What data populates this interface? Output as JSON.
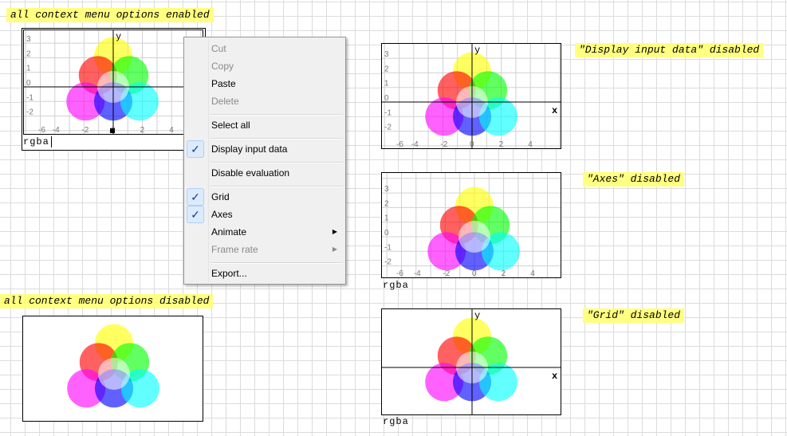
{
  "notes": {
    "enabled": "all context menu options enabled",
    "disabled": "all context menu options disabled",
    "no_input": "\"Display input data\" disabled",
    "no_axes": "\"Axes\" disabled",
    "no_grid": "\"Grid\" disabled"
  },
  "input_label": "rgba",
  "axis_labels": {
    "x": "x",
    "y": "y"
  },
  "x_ticks": [
    "-6",
    "-4",
    "-2",
    "0",
    "2",
    "4"
  ],
  "y_ticks": [
    "3",
    "2",
    "1",
    "0",
    "-1",
    "-2"
  ],
  "circles": [
    {
      "name": "yellow",
      "color": "#ffff00",
      "x": 0,
      "y": 2.1
    },
    {
      "name": "red",
      "color": "#ff0000",
      "x": -1.05,
      "y": 0.8
    },
    {
      "name": "green",
      "color": "#00ff00",
      "x": 1.1,
      "y": 0.8
    },
    {
      "name": "magenta",
      "color": "#ff00ff",
      "x": -1.9,
      "y": -1
    },
    {
      "name": "blue",
      "color": "#0000ff",
      "x": 0,
      "y": -1
    },
    {
      "name": "cyan",
      "color": "#00ffff",
      "x": 1.8,
      "y": -1
    },
    {
      "name": "white",
      "color": "#ffffff",
      "x": 0,
      "y": 0
    }
  ],
  "menu": {
    "items": [
      {
        "label": "Cut",
        "enabled": false
      },
      {
        "label": "Copy",
        "enabled": false
      },
      {
        "label": "Paste",
        "enabled": true
      },
      {
        "label": "Delete",
        "enabled": false
      },
      {
        "label": "Select all",
        "enabled": true
      },
      {
        "label": "Display input data",
        "enabled": true,
        "checked": true
      },
      {
        "label": "Disable evaluation",
        "enabled": true
      },
      {
        "label": "Grid",
        "enabled": true,
        "checked": true
      },
      {
        "label": "Axes",
        "enabled": true,
        "checked": true
      },
      {
        "label": "Animate",
        "enabled": true,
        "submenu": true
      },
      {
        "label": "Frame rate",
        "enabled": false,
        "submenu": true
      },
      {
        "label": "Export...",
        "enabled": true
      }
    ],
    "check_glyph": "✓",
    "submenu_glyph": "▶"
  }
}
